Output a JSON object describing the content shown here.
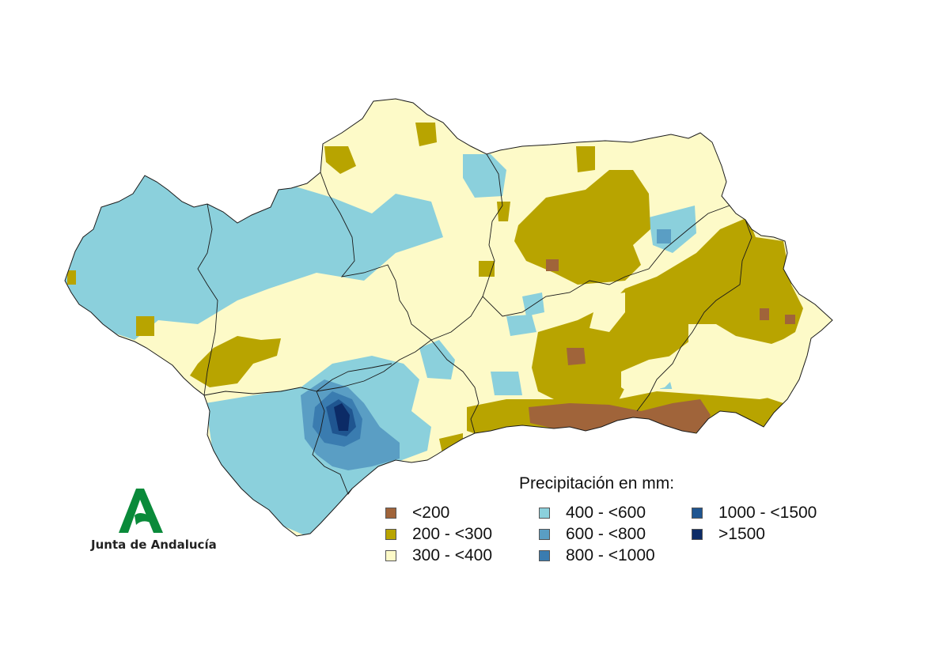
{
  "colors": {
    "lt200": "#a0643a",
    "r200_300": "#b8a400",
    "r300_400": "#fdfac8",
    "r400_600": "#8bd0dc",
    "r600_800": "#5a9ec4",
    "r800_1000": "#3a7cb0",
    "r1000_1500": "#1f5590",
    "gt1500": "#0c2b66",
    "border": "#1a1a1a"
  },
  "legend": {
    "title": "Precipitación en mm:",
    "items": [
      {
        "label": "<200",
        "color": "#a0643a"
      },
      {
        "label": "200 - <300",
        "color": "#b8a400"
      },
      {
        "label": "300 - <400",
        "color": "#fdfac8"
      },
      {
        "label": "400 - <600",
        "color": "#8bd0dc"
      },
      {
        "label": "600 - <800",
        "color": "#5a9ec4"
      },
      {
        "label": "800 - <1000",
        "color": "#3a7cb0"
      },
      {
        "label": "1000 - <1500",
        "color": "#1f5590"
      },
      {
        "label": ">1500",
        "color": "#0c2b66"
      }
    ]
  },
  "logo": {
    "text": "Junta de Andalucía",
    "color": "#0a8a3a"
  }
}
